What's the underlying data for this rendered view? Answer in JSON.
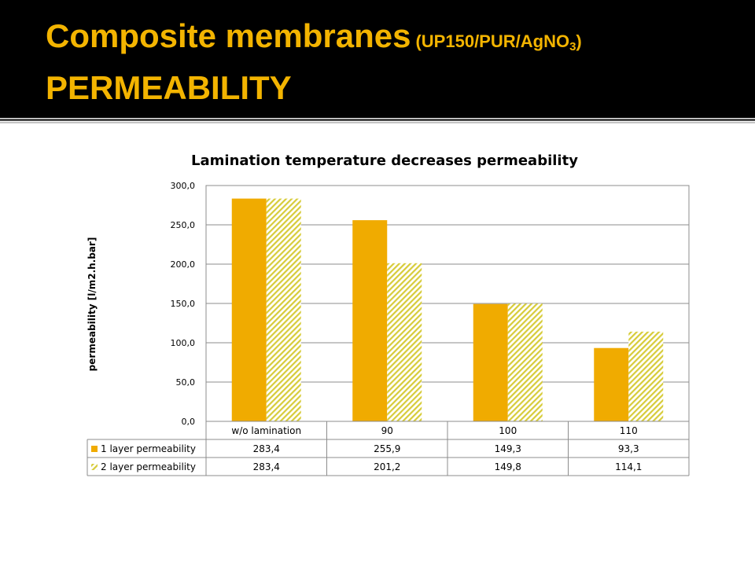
{
  "slide": {
    "title_main": "Composite membranes",
    "title_sub_prefix": "(UP150/PUR/AgNO",
    "title_sub_subscript": "3",
    "title_sub_suffix": ")",
    "title_line2": "PERMEABILITY"
  },
  "colors": {
    "header_bg": "#000000",
    "title": "#f3b400",
    "series1": "#f0ab00",
    "series2_hatch": "#d7cc3a"
  },
  "chart_data": {
    "type": "bar",
    "title": "Lamination temperature decreases  permeability",
    "xlabel": "",
    "ylabel": "permeability [l/m2.h.bar]",
    "categories": [
      "w/o lamination",
      "90",
      "100",
      "110"
    ],
    "series": [
      {
        "name": "1 layer permeability",
        "values": [
          283.4,
          255.9,
          149.3,
          93.3
        ],
        "labels": [
          "283,4",
          "255,9",
          "149,3",
          "93,3"
        ]
      },
      {
        "name": "2 layer permeability",
        "values": [
          283.4,
          201.2,
          149.8,
          114.1
        ],
        "labels": [
          "283,4",
          "201,2",
          "149,8",
          "114,1"
        ]
      }
    ],
    "ylim": [
      0,
      300
    ],
    "yticks": [
      "0,0",
      "50,0",
      "100,0",
      "150,0",
      "200,0",
      "250,0",
      "300,0"
    ],
    "grid": true,
    "legend": "data table below chart"
  }
}
